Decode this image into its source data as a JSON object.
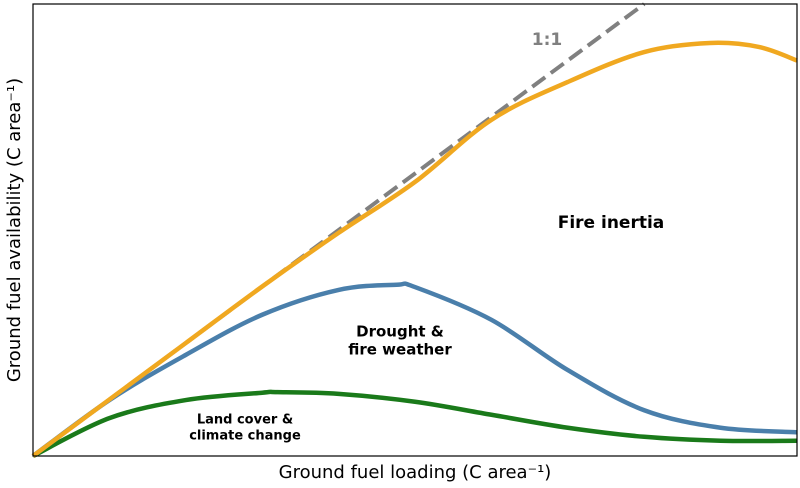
{
  "chart_data": {
    "type": "line",
    "xlabel": "Ground fuel loading (C area⁻¹)",
    "ylabel": "Ground fuel availability (C area⁻¹)",
    "xlim": [
      0,
      10
    ],
    "ylim": [
      0,
      8
    ],
    "series": [
      {
        "color": "#808080",
        "dashed": true,
        "x": [
          0,
          8
        ],
        "values": [
          0,
          8
        ]
      },
      {
        "color": "#f0a820",
        "x": [
          0,
          1,
          2,
          3,
          4,
          5,
          6,
          7,
          8,
          8.86,
          9.5,
          10
        ],
        "values": [
          0,
          1,
          2,
          3,
          3.95,
          4.85,
          5.95,
          6.62,
          7.15,
          7.31,
          7.24,
          7.0
        ]
      },
      {
        "color": "#4a7fab",
        "x": [
          0,
          1,
          2,
          3,
          4,
          4.76,
          5,
          6,
          7,
          8,
          9,
          10
        ],
        "values": [
          0,
          0.99,
          1.79,
          2.5,
          2.94,
          3.03,
          2.99,
          2.41,
          1.52,
          0.81,
          0.5,
          0.42
        ]
      },
      {
        "color": "#1a7a1a",
        "x": [
          0,
          1,
          2,
          3,
          3.2,
          4,
          5,
          6,
          7,
          8,
          9,
          10
        ],
        "values": [
          0,
          0.67,
          0.99,
          1.12,
          1.13,
          1.1,
          0.96,
          0.73,
          0.5,
          0.34,
          0.27,
          0.27
        ]
      }
    ],
    "annotations": [
      {
        "lines": [
          "1:1"
        ],
        "color": "#808080"
      },
      {
        "lines": [
          "Fire inertia"
        ],
        "color": "#000000"
      },
      {
        "lines": [
          "Drought &",
          "fire weather"
        ],
        "color": "#000000"
      },
      {
        "lines": [
          "Land cover &",
          "climate change"
        ],
        "color": "#000000"
      }
    ]
  }
}
